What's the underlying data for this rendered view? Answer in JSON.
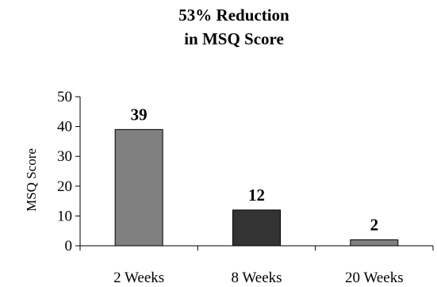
{
  "chart_data": {
    "type": "bar",
    "title_lines": [
      "53% Reduction",
      "in MSQ Score"
    ],
    "xlabel": "",
    "ylabel": "MSQ Score",
    "categories": [
      "2 Weeks",
      "8 Weeks",
      "20 Weeks"
    ],
    "series": [
      {
        "values": [
          39,
          12,
          2
        ],
        "colors": [
          "#808080",
          "#333333",
          "#808080"
        ],
        "data_labels": [
          "39",
          "12",
          "2"
        ]
      }
    ],
    "ylim": [
      0,
      50
    ],
    "yticks": [
      "0",
      "10",
      "20",
      "30",
      "40",
      "50"
    ],
    "grid": false,
    "legend": "none"
  }
}
